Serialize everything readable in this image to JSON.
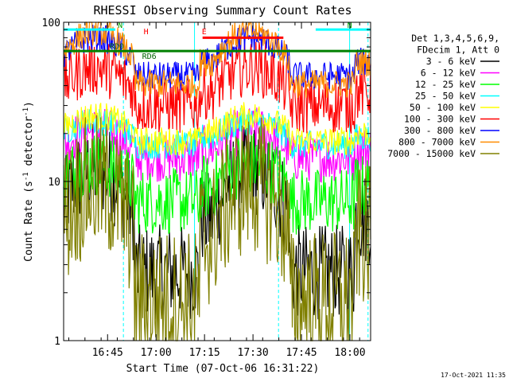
{
  "chart_data": {
    "type": "line",
    "title": "RHESSI Observing Summary Count Rates",
    "xlabel": "Start Time (07-Oct-06 16:31:22)",
    "ylabel": "Count Rate (s",
    "ylabel_sup": "-1",
    "ylabel_end": " detector",
    "ylabel_end_sup": "-1",
    "ylabel_close": ")",
    "yscale": "log",
    "ylim": [
      1,
      100
    ],
    "xlim_minutes": [
      0,
      95
    ],
    "x_ticks": [
      {
        "label": "16:45",
        "minute": 13.6
      },
      {
        "label": "17:00",
        "minute": 28.6
      },
      {
        "label": "17:15",
        "minute": 43.6
      },
      {
        "label": "17:30",
        "minute": 58.6
      },
      {
        "label": "17:45",
        "minute": 73.6
      },
      {
        "label": "18:00",
        "minute": 88.6
      }
    ],
    "y_ticks": [
      {
        "label": "1",
        "value": 1
      },
      {
        "label": "10",
        "value": 10
      },
      {
        "label": "100",
        "value": 100
      }
    ],
    "legend_title_lines": [
      "Det 1,3,4,5,6,9,",
      "FDecim 1, Att 0"
    ],
    "legend_placement": "right",
    "series": [
      {
        "name": "3 - 6 keV",
        "color": "#000000",
        "day": 12,
        "night": 2.7,
        "noise": 0.1
      },
      {
        "name": "6 - 12 keV",
        "color": "#ff00ff",
        "day": 21,
        "night": 14,
        "noise": 0.05
      },
      {
        "name": "12 - 25 keV",
        "color": "#00ff00",
        "day": 13,
        "night": 7.5,
        "noise": 0.07
      },
      {
        "name": "25 - 50 keV",
        "color": "#00ffff",
        "day": 24,
        "night": 17,
        "noise": 0.03
      },
      {
        "name": "50 - 100 keV",
        "color": "#ffff00",
        "day": 26,
        "night": 18,
        "noise": 0.03
      },
      {
        "name": "100 - 300 keV",
        "color": "#ff0000",
        "day": 52,
        "night": 30,
        "noise": 0.06
      },
      {
        "name": "300 - 800 keV",
        "color": "#0000ff",
        "day": 80,
        "night": 46,
        "noise": 0.03
      },
      {
        "name": "800 - 7000 keV",
        "color": "#ff8c00",
        "day": 88,
        "night": 41,
        "noise": 0.03
      },
      {
        "name": "7000 - 15000 keV",
        "color": "#808000",
        "day": 9.5,
        "night": 1.8,
        "noise": 0.15
      }
    ],
    "orbit_peaks_minutes": [
      10,
      58
    ],
    "night_intervals_minutes": [
      [
        22,
        42
      ],
      [
        70,
        90
      ]
    ],
    "annotations": [
      {
        "label": "N",
        "minute": 17.5,
        "value": 92,
        "color": "#00a000"
      },
      {
        "label": "RD0",
        "minute": 16.5,
        "value": 68,
        "color": "#006400"
      },
      {
        "label": "RD6",
        "minute": 26.5,
        "value": 59,
        "color": "#006400"
      },
      {
        "label": "N",
        "minute": 88.5,
        "value": 92,
        "color": "#00a000"
      },
      {
        "label": "H",
        "minute": 25.5,
        "value": 84,
        "color": "#ff0000"
      },
      {
        "label": "E",
        "minute": 43.5,
        "value": 84,
        "color": "#ff0000"
      }
    ],
    "footer_timestamp": "17-Oct-2021 11:35"
  }
}
